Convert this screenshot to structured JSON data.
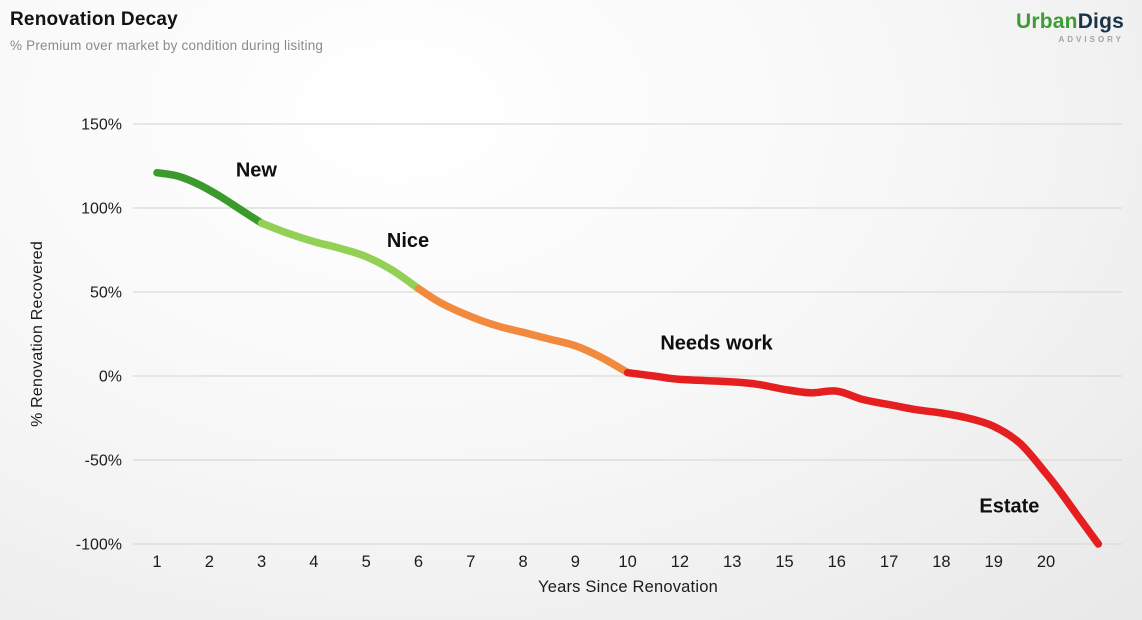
{
  "header": {
    "title": "Renovation Decay",
    "subtitle": "% Premium over market by condition during lisiting"
  },
  "logo": {
    "brand_first": "Urban",
    "brand_second": "Digs",
    "tagline": "ADVISORY",
    "color_first": "#3e9b35",
    "color_second": "#1c3246"
  },
  "chart_data": {
    "type": "line",
    "title": "Renovation Decay",
    "subtitle": "% Premium over market by condition during lisiting",
    "xlabel": "Years Since Renovation",
    "ylabel": "% Renovation Recovered",
    "x_tick_labels": [
      "1",
      "2",
      "3",
      "4",
      "5",
      "6",
      "7",
      "8",
      "9",
      "10",
      "12",
      "13",
      "15",
      "16",
      "17",
      "18",
      "19",
      "20"
    ],
    "y_tick_labels": [
      "150%",
      "100%",
      "50%",
      "0%",
      "-50%",
      "-100%"
    ],
    "y_tick_values": [
      150,
      100,
      50,
      0,
      -50,
      -100
    ],
    "ylim": [
      -115,
      170
    ],
    "grid": "horizontal",
    "grid_color": "#d9d9d9",
    "line_width": 7.5,
    "segments": [
      {
        "name": "New",
        "color": "#3a9a2b",
        "points": [
          [
            1,
            121
          ],
          [
            1.4,
            119
          ],
          [
            1.8,
            114
          ],
          [
            2.2,
            107
          ],
          [
            2.6,
            99
          ],
          [
            3,
            91
          ]
        ]
      },
      {
        "name": "Nice",
        "color": "#93d055",
        "points": [
          [
            3,
            91
          ],
          [
            3.5,
            85
          ],
          [
            4,
            80
          ],
          [
            4.5,
            76
          ],
          [
            5,
            71
          ],
          [
            5.5,
            63
          ],
          [
            6,
            52
          ]
        ]
      },
      {
        "name": "Needs work",
        "color": "#f28a3d",
        "points": [
          [
            6,
            52
          ],
          [
            6.4,
            44
          ],
          [
            6.8,
            38
          ],
          [
            7.2,
            33
          ],
          [
            7.6,
            29
          ],
          [
            8,
            26
          ],
          [
            8.5,
            22
          ],
          [
            9,
            18
          ],
          [
            9.5,
            11
          ],
          [
            10,
            2
          ]
        ]
      },
      {
        "name": "Estate",
        "color": "#e51f1f",
        "points": [
          [
            10,
            2
          ],
          [
            10.5,
            1
          ],
          [
            11,
            0
          ],
          [
            12,
            -2
          ],
          [
            13,
            -3.5
          ],
          [
            14,
            -5
          ],
          [
            15,
            -8
          ],
          [
            15.5,
            -10
          ],
          [
            16,
            -9
          ],
          [
            16.5,
            -14
          ],
          [
            17,
            -17
          ],
          [
            17.5,
            -20
          ],
          [
            18,
            -22
          ],
          [
            18.5,
            -25
          ],
          [
            19,
            -30
          ],
          [
            19.5,
            -40
          ],
          [
            20,
            -58
          ],
          [
            20.3,
            -70
          ],
          [
            20.6,
            -83
          ],
          [
            21,
            -100
          ]
        ]
      }
    ],
    "annotations": [
      {
        "text": "New",
        "year": 2.9,
        "value": 123
      },
      {
        "text": "Nice",
        "year": 5.8,
        "value": 81
      },
      {
        "text": "Needs work",
        "year": 12.7,
        "value": 20
      },
      {
        "text": "Estate",
        "year": 19.3,
        "value": -77
      }
    ]
  }
}
